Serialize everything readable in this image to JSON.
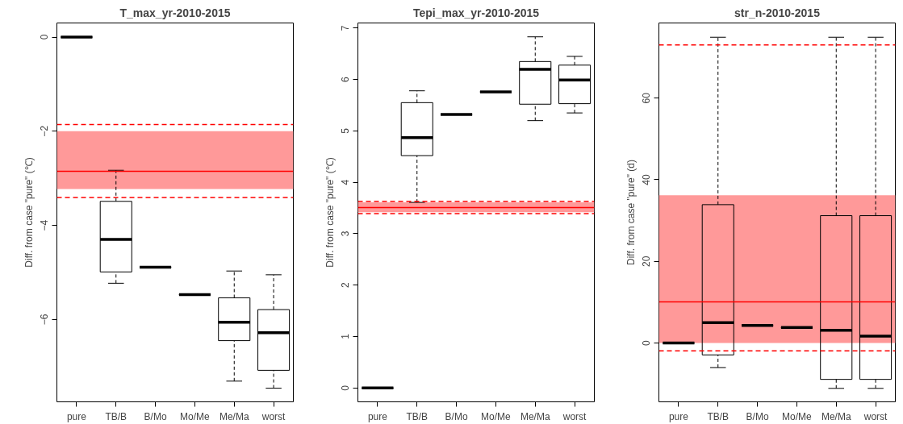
{
  "chart_data": [
    {
      "type": "box",
      "title": "T_max_yr-2010-2015",
      "ylabel": "Diff. from case \"pure\" (℃)",
      "categories": [
        "pure",
        "TB/B",
        "B/Mo",
        "Mo/Me",
        "Me/Ma",
        "worst"
      ],
      "boxes": [
        {
          "low": 0,
          "q1": 0,
          "median": 0,
          "q3": 0,
          "high": 0
        },
        {
          "low": -5.23,
          "q1": -4.99,
          "median": -4.3,
          "q3": -3.49,
          "high": -2.83
        },
        {
          "low": -4.89,
          "q1": -4.89,
          "median": -4.89,
          "q3": -4.89,
          "high": -4.89
        },
        {
          "low": -5.47,
          "q1": -5.47,
          "median": -5.47,
          "q3": -5.47,
          "high": -5.47
        },
        {
          "low": -7.31,
          "q1": -6.45,
          "median": -6.06,
          "q3": -5.54,
          "high": -4.97
        },
        {
          "low": -7.46,
          "q1": -7.08,
          "median": -6.28,
          "q3": -5.79,
          "high": -5.05
        }
      ],
      "ylim": [
        -7.75,
        0.3
      ],
      "yticks": [
        -6,
        -4,
        -2,
        0
      ],
      "grid": false,
      "bands": [
        {
          "axis": "y",
          "from": -3.23,
          "to": -2.0,
          "color": "#ff9999"
        }
      ],
      "ref_lines": [
        {
          "axis": "y",
          "value": -2.85,
          "color": "#ff0000",
          "line_style": "solid"
        },
        {
          "axis": "y",
          "value": -1.86,
          "color": "#ff0000",
          "line_style": "dashed"
        },
        {
          "axis": "y",
          "value": -3.41,
          "color": "#ff0000",
          "line_style": "dashed"
        }
      ]
    },
    {
      "type": "box",
      "title": "Tepi_max_yr-2010-2015",
      "ylabel": "Diff. from case \"pure\" (℃)",
      "categories": [
        "pure",
        "TB/B",
        "B/Mo",
        "Mo/Me",
        "Me/Ma",
        "worst"
      ],
      "boxes": [
        {
          "low": 0,
          "q1": 0,
          "median": 0,
          "q3": 0,
          "high": 0
        },
        {
          "low": 3.61,
          "q1": 4.52,
          "median": 4.87,
          "q3": 5.55,
          "high": 5.78
        },
        {
          "low": 5.32,
          "q1": 5.32,
          "median": 5.32,
          "q3": 5.32,
          "high": 5.32
        },
        {
          "low": 5.76,
          "q1": 5.76,
          "median": 5.76,
          "q3": 5.76,
          "high": 5.76
        },
        {
          "low": 5.2,
          "q1": 5.52,
          "median": 6.2,
          "q3": 6.35,
          "high": 6.83
        },
        {
          "low": 5.35,
          "q1": 5.53,
          "median": 5.99,
          "q3": 6.28,
          "high": 6.45
        }
      ],
      "ylim": [
        -0.27,
        7.1
      ],
      "yticks": [
        0,
        1,
        2,
        3,
        4,
        5,
        6,
        7
      ],
      "grid": false,
      "bands": [
        {
          "axis": "y",
          "from": 3.42,
          "to": 3.61,
          "color": "#ff9999"
        }
      ],
      "ref_lines": [
        {
          "axis": "y",
          "value": 3.51,
          "color": "#ff0000",
          "line_style": "solid"
        },
        {
          "axis": "y",
          "value": 3.63,
          "color": "#ff0000",
          "line_style": "dashed"
        },
        {
          "axis": "y",
          "value": 3.39,
          "color": "#ff0000",
          "line_style": "dashed"
        }
      ]
    },
    {
      "type": "box",
      "title": "str_n-2010-2015",
      "ylabel": "Diff. from case \"pure\" (d)",
      "categories": [
        "pure",
        "TB/B",
        "B/Mo",
        "Mo/Me",
        "Me/Ma",
        "worst"
      ],
      "boxes": [
        {
          "low": 0,
          "q1": 0,
          "median": 0,
          "q3": 0,
          "high": 0
        },
        {
          "low": -6.0,
          "q1": -2.9,
          "median": 5.0,
          "q3": 33.9,
          "high": 74.9
        },
        {
          "low": 4.3,
          "q1": 4.3,
          "median": 4.3,
          "q3": 4.3,
          "high": 4.3
        },
        {
          "low": 3.8,
          "q1": 3.8,
          "median": 3.8,
          "q3": 3.8,
          "high": 3.8
        },
        {
          "low": -11.1,
          "q1": -8.9,
          "median": 3.1,
          "q3": 31.2,
          "high": 74.9
        },
        {
          "low": -11.1,
          "q1": -8.9,
          "median": 1.7,
          "q3": 31.2,
          "high": 74.9
        }
      ],
      "ylim": [
        -14.4,
        78.4
      ],
      "yticks": [
        0,
        20,
        40,
        60
      ],
      "grid": false,
      "bands": [
        {
          "axis": "y",
          "from": 0,
          "to": 36.2,
          "color": "#ff9999"
        }
      ],
      "ref_lines": [
        {
          "axis": "y",
          "value": 10.1,
          "color": "#ff0000",
          "line_style": "solid"
        },
        {
          "axis": "y",
          "value": 73.0,
          "color": "#ff0000",
          "line_style": "dashed"
        },
        {
          "axis": "y",
          "value": -1.9,
          "color": "#ff0000",
          "line_style": "dashed"
        }
      ]
    }
  ]
}
